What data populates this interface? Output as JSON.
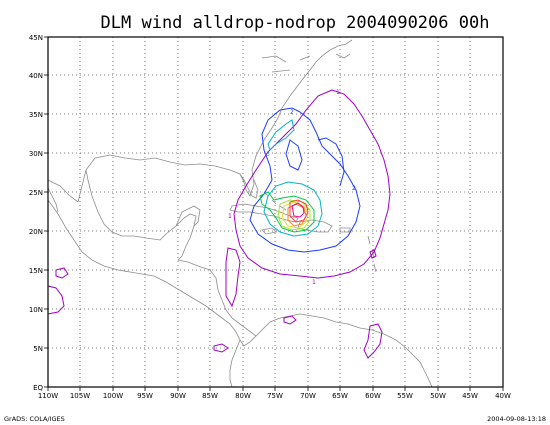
{
  "title": "DLM wind alldrop-nodrop 2004090206 00h",
  "footer_left": "GrADS: COLA/IGES",
  "footer_right": "2004-09-08-13:18",
  "x_axis_labels": [
    "110W",
    "105W",
    "100W",
    "95W",
    "90W",
    "85W",
    "80W",
    "75W",
    "70W",
    "65W",
    "60W",
    "55W",
    "50W",
    "45W",
    "40W"
  ],
  "y_axis_labels": [
    "EQ",
    "5N",
    "10N",
    "15N",
    "20N",
    "25N",
    "30N",
    "35N",
    "40N",
    "45N"
  ],
  "contour_labels": {
    "c1": "1",
    "c2": "2",
    "c3": "3"
  },
  "colors": {
    "frame": "#000000",
    "grid": "#555555",
    "coast": "#8c8c8c",
    "contour_1": "#a000c8",
    "contour_2": "#1e3cff",
    "contour_3": "#00b4c8",
    "contour_4": "#00c846",
    "contour_5": "#a0e632",
    "contour_6": "#e6dc32",
    "contour_7": "#f08228",
    "contour_8": "#fa3c3c",
    "contour_9": "#f00082"
  }
}
